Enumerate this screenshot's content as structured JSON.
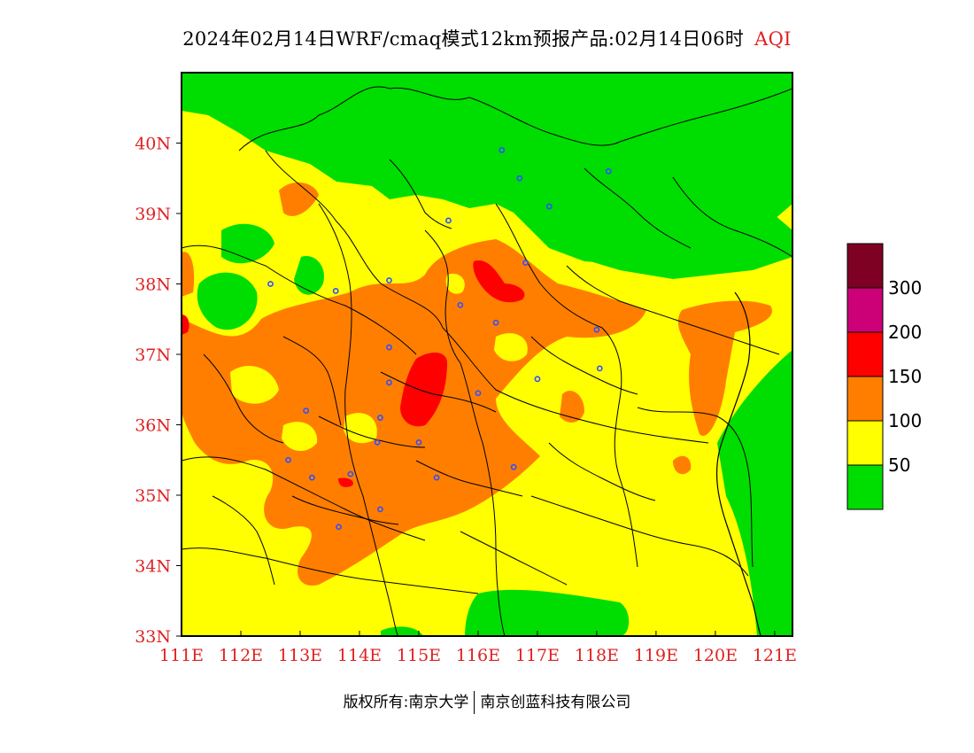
{
  "title": {
    "main": "2024年02月14日WRF/cmaq模式12km预报产品:02月14日06时",
    "product": "AQI"
  },
  "axes": {
    "lon_labels": [
      "111E",
      "112E",
      "113E",
      "114E",
      "115E",
      "116E",
      "117E",
      "118E",
      "119E",
      "120E",
      "121E"
    ],
    "lat_labels": [
      "40N",
      "39N",
      "38N",
      "37N",
      "36N",
      "35N",
      "34N",
      "33N"
    ],
    "lon_values": [
      111,
      112,
      113,
      114,
      115,
      116,
      117,
      118,
      119,
      120,
      121
    ],
    "lat_values": [
      40,
      39,
      38,
      37,
      36,
      35,
      34,
      33
    ],
    "lon_range": [
      111,
      121.3
    ],
    "lat_range": [
      33,
      41
    ]
  },
  "legend": {
    "labels": [
      "300",
      "200",
      "150",
      "100",
      "50"
    ],
    "bins": [
      {
        "color": "#00dd00",
        "range": "0-50"
      },
      {
        "color": "#ffff00",
        "range": "50-100"
      },
      {
        "color": "#ff7e00",
        "range": "100-150"
      },
      {
        "color": "#ff0000",
        "range": "150-200"
      },
      {
        "color": "#cc0077",
        "range": "200-300"
      },
      {
        "color": "#7e0023",
        "range": ">300"
      }
    ]
  },
  "colors": {
    "good": "#00dd00",
    "moderate": "#ffff00",
    "unhealthy_sensitive": "#ff7e00",
    "unhealthy": "#ff0000",
    "very_unhealthy": "#cc0077",
    "hazardous": "#7e0023",
    "station_marker": "#3050ff",
    "tick_label": "#e02020"
  },
  "stations": [
    {
      "lon": 116.4,
      "lat": 39.9
    },
    {
      "lon": 116.7,
      "lat": 39.5
    },
    {
      "lon": 117.2,
      "lat": 39.1
    },
    {
      "lon": 118.2,
      "lat": 39.6
    },
    {
      "lon": 115.5,
      "lat": 38.9
    },
    {
      "lon": 116.8,
      "lat": 38.3
    },
    {
      "lon": 112.5,
      "lat": 38.0
    },
    {
      "lon": 113.6,
      "lat": 37.9
    },
    {
      "lon": 114.5,
      "lat": 38.05
    },
    {
      "lon": 115.7,
      "lat": 37.7
    },
    {
      "lon": 116.3,
      "lat": 37.45
    },
    {
      "lon": 118.0,
      "lat": 37.35
    },
    {
      "lon": 114.5,
      "lat": 37.1
    },
    {
      "lon": 114.5,
      "lat": 36.6
    },
    {
      "lon": 116.0,
      "lat": 36.45
    },
    {
      "lon": 117.0,
      "lat": 36.65
    },
    {
      "lon": 118.05,
      "lat": 36.8
    },
    {
      "lon": 113.1,
      "lat": 36.2
    },
    {
      "lon": 114.35,
      "lat": 36.1
    },
    {
      "lon": 114.3,
      "lat": 35.75
    },
    {
      "lon": 115.0,
      "lat": 35.75
    },
    {
      "lon": 112.8,
      "lat": 35.5
    },
    {
      "lon": 116.6,
      "lat": 35.4
    },
    {
      "lon": 113.2,
      "lat": 35.25
    },
    {
      "lon": 113.85,
      "lat": 35.3
    },
    {
      "lon": 115.3,
      "lat": 35.25
    },
    {
      "lon": 114.35,
      "lat": 34.8
    },
    {
      "lon": 113.65,
      "lat": 34.55
    }
  ],
  "copyright": {
    "left": "版权所有:南京大学",
    "right": "南京创蓝科技有限公司"
  }
}
